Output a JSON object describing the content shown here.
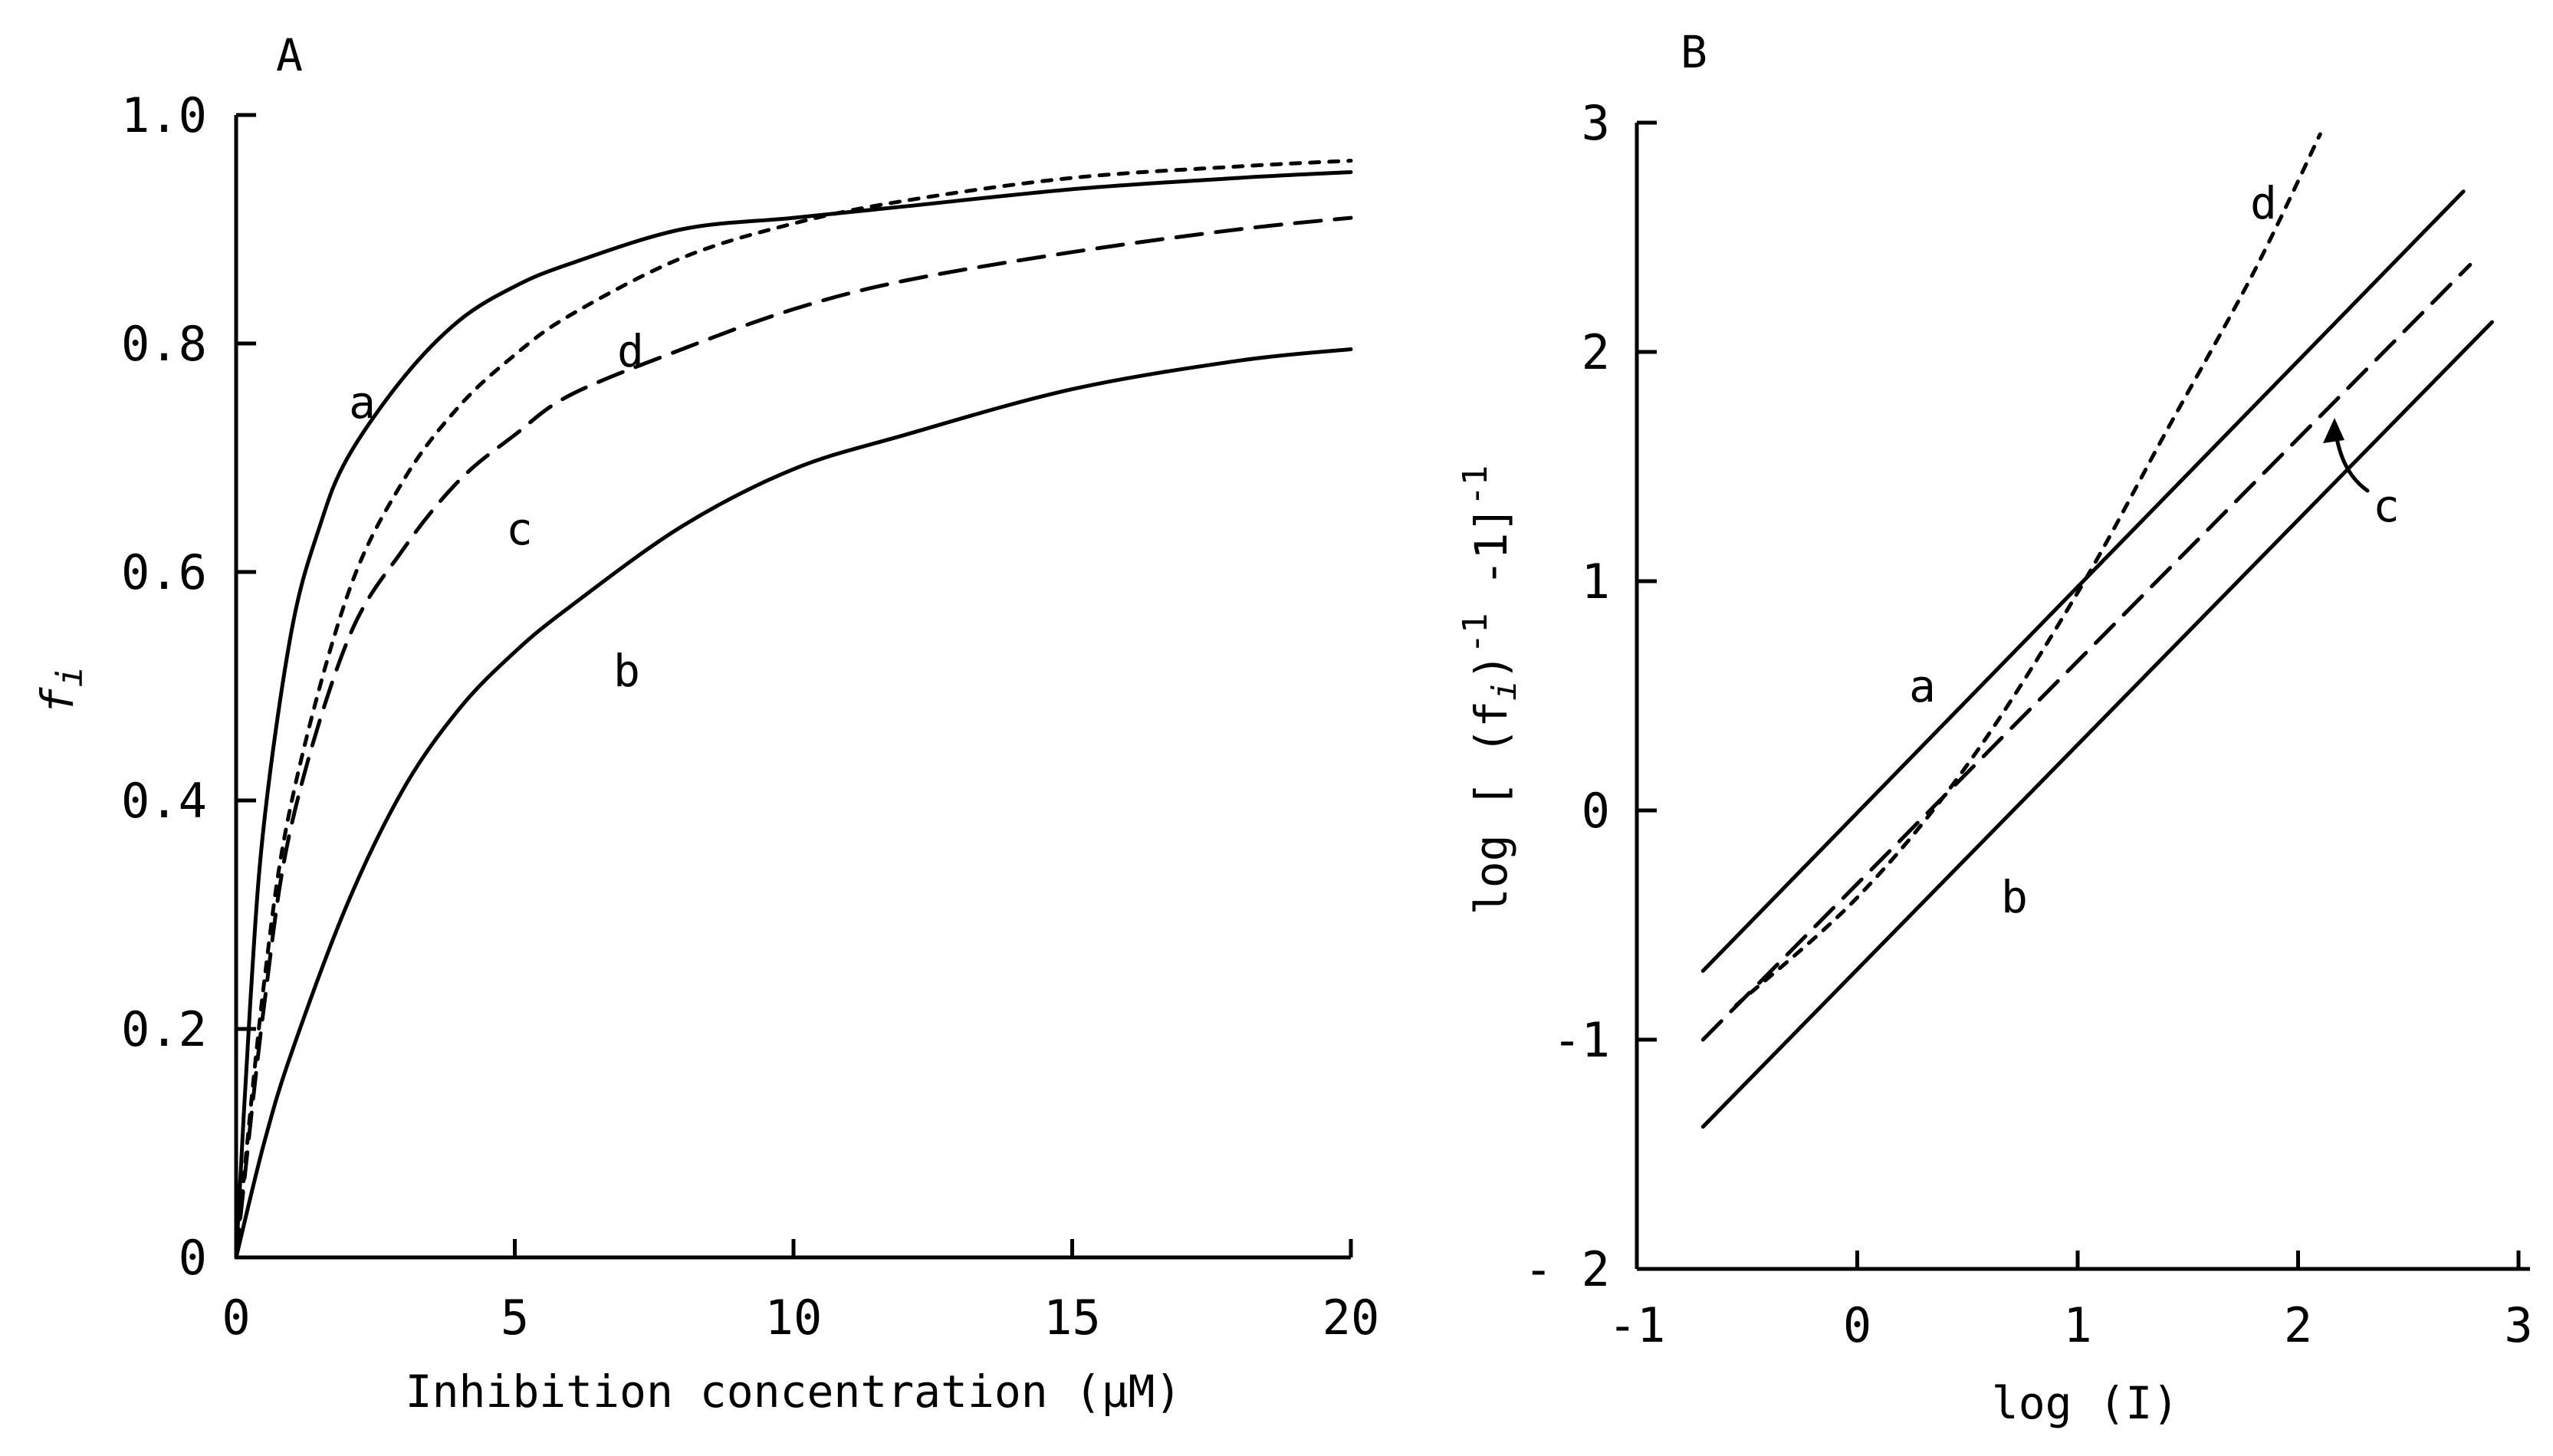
{
  "chart_data": [
    {
      "panel": "A",
      "type": "line",
      "xlabel": "Inhibition concentration (μM)",
      "ylabel": "f",
      "ylabel_sub": "i",
      "xlim": [
        0,
        20
      ],
      "ylim": [
        0,
        1.0
      ],
      "x_ticks": [
        "0",
        "5",
        "10",
        "15",
        "20"
      ],
      "y_ticks": [
        "0",
        "0.2",
        "0.4",
        "0.6",
        "0.8",
        "1.0"
      ],
      "series": [
        {
          "name": "a",
          "style": "solid",
          "x": [
            0,
            0.25,
            0.5,
            1,
            1.5,
            2,
            3,
            4,
            5,
            6,
            8,
            10,
            12,
            15,
            18,
            20
          ],
          "y": [
            0,
            0.22,
            0.38,
            0.55,
            0.64,
            0.7,
            0.77,
            0.82,
            0.85,
            0.87,
            0.9,
            0.91,
            0.92,
            0.935,
            0.945,
            0.95
          ]
        },
        {
          "name": "b",
          "style": "solid",
          "x": [
            0,
            0.5,
            1,
            2,
            3,
            4,
            5,
            6,
            8,
            10,
            12,
            15,
            18,
            20
          ],
          "y": [
            0,
            0.1,
            0.18,
            0.31,
            0.41,
            0.48,
            0.53,
            0.57,
            0.64,
            0.69,
            0.72,
            0.76,
            0.785,
            0.795
          ]
        },
        {
          "name": "c",
          "style": "dash",
          "x": [
            0,
            0.5,
            1,
            2,
            3,
            4,
            5,
            6,
            8,
            10,
            12,
            15,
            18,
            20
          ],
          "y": [
            0,
            0.22,
            0.38,
            0.54,
            0.62,
            0.68,
            0.72,
            0.755,
            0.795,
            0.83,
            0.855,
            0.88,
            0.9,
            0.91
          ]
        },
        {
          "name": "d",
          "style": "dot",
          "x": [
            0,
            0.5,
            1,
            2,
            3,
            4,
            5,
            6,
            8,
            10,
            12,
            15,
            18,
            20
          ],
          "y": [
            0,
            0.24,
            0.4,
            0.58,
            0.68,
            0.745,
            0.79,
            0.825,
            0.875,
            0.905,
            0.925,
            0.945,
            0.955,
            0.96
          ]
        }
      ]
    },
    {
      "panel": "B",
      "type": "line",
      "xlabel": "log (I)",
      "ylabel": "log [ (f",
      "ylabel_sub": "i",
      "ylabel_rest": ")",
      "ylabel_sup1": "-1",
      "ylabel_mid": " -1]",
      "ylabel_sup2": "-1",
      "xlim": [
        -1,
        3
      ],
      "ylim": [
        -2,
        3
      ],
      "x_ticks": [
        "-1",
        "0",
        "1",
        "2",
        "3"
      ],
      "y_ticks": [
        "- 2",
        "-1",
        "0",
        "1",
        "2",
        "3"
      ],
      "series": [
        {
          "name": "a",
          "style": "solid",
          "x": [
            -0.7,
            2.75
          ],
          "y": [
            -0.7,
            2.7
          ]
        },
        {
          "name": "b",
          "style": "solid",
          "x": [
            -0.7,
            2.88
          ],
          "y": [
            -1.38,
            2.13
          ]
        },
        {
          "name": "c",
          "style": "dash",
          "x": [
            -0.7,
            2.78
          ],
          "y": [
            -1.0,
            2.38
          ]
        },
        {
          "name": "d",
          "style": "dot",
          "x": [
            -0.55,
            0,
            0.5,
            1.0,
            1.4,
            1.8,
            2.1
          ],
          "y": [
            -0.85,
            -0.38,
            0.2,
            0.95,
            1.65,
            2.35,
            2.95
          ]
        }
      ]
    }
  ]
}
